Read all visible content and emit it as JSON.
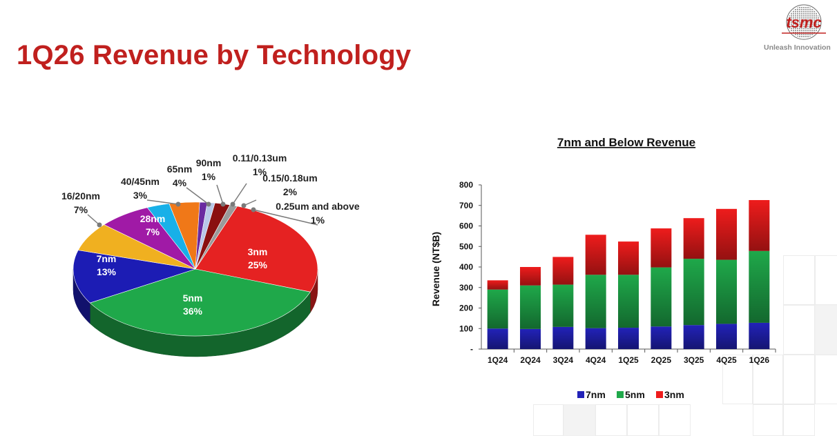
{
  "page": {
    "title": "1Q26 Revenue by Technology",
    "brand": {
      "logo_text": "tsmc",
      "tagline": "Unleash Innovation",
      "brand_color": "#c0201e"
    }
  },
  "chart_data": [
    {
      "type": "pie",
      "slices": [
        {
          "name": "3nm",
          "value": 25,
          "label": "25%",
          "color": "#e52222"
        },
        {
          "name": "5nm",
          "value": 36,
          "label": "36%",
          "color": "#1fa84a"
        },
        {
          "name": "7nm",
          "value": 13,
          "label": "13%",
          "color": "#1c1cb4"
        },
        {
          "name": "16/20nm",
          "value": 7,
          "label": "7%",
          "color": "#f0b020"
        },
        {
          "name": "28nm",
          "value": 7,
          "label": "7%",
          "color": "#a01aa6"
        },
        {
          "name": "40/45nm",
          "value": 3,
          "label": "3%",
          "color": "#18b0e8"
        },
        {
          "name": "65nm",
          "value": 4,
          "label": "4%",
          "color": "#f07818"
        },
        {
          "name": "90nm",
          "value": 1,
          "label": "1%",
          "color": "#6a2aa0"
        },
        {
          "name": "0.11/0.13um",
          "value": 1,
          "label": "1%",
          "color": "#b8c8e8"
        },
        {
          "name": "0.15/0.18um",
          "value": 2,
          "label": "2%",
          "color": "#8a1010"
        },
        {
          "name": "0.25um and above",
          "value": 1,
          "label": "1%",
          "color": "#9a9a9a"
        }
      ]
    },
    {
      "type": "bar",
      "stacked": true,
      "title": "7nm and Below Revenue",
      "ylabel": "Revenue (NT$B)",
      "ylim": [
        0,
        800
      ],
      "yticks": [
        "-",
        "100",
        "200",
        "300",
        "400",
        "500",
        "600",
        "700",
        "800"
      ],
      "categories": [
        "1Q24",
        "2Q24",
        "3Q24",
        "4Q24",
        "1Q25",
        "2Q25",
        "3Q25",
        "4Q25",
        "1Q26"
      ],
      "series": [
        {
          "name": "7nm",
          "color": "#2222b8",
          "values": [
            100,
            98,
            108,
            102,
            104,
            110,
            117,
            123,
            128
          ]
        },
        {
          "name": "5nm",
          "color": "#1fa84a",
          "values": [
            190,
            212,
            206,
            260,
            258,
            288,
            323,
            312,
            350
          ]
        },
        {
          "name": "3nm",
          "color": "#ee1c1c",
          "values": [
            45,
            90,
            135,
            195,
            162,
            190,
            198,
            248,
            248
          ]
        }
      ],
      "legend": "bottom"
    }
  ]
}
